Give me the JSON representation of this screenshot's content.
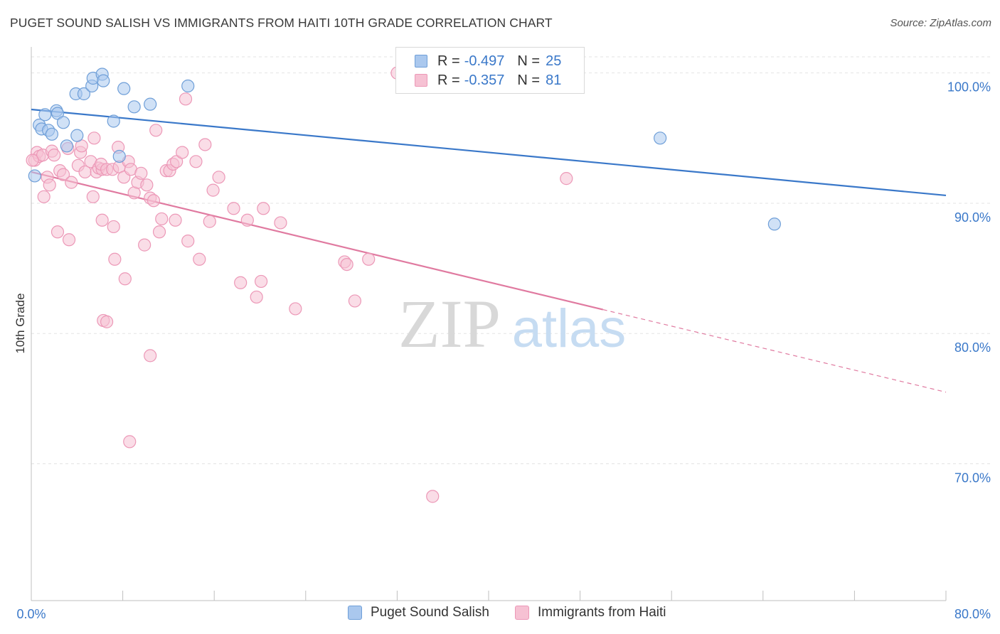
{
  "title": "PUGET SOUND SALISH VS IMMIGRANTS FROM HAITI 10TH GRADE CORRELATION CHART",
  "source": "Source: ZipAtlas.com",
  "watermark": {
    "zip": "ZIP",
    "atlas": "atlas"
  },
  "colors": {
    "blue": "#3a78c9",
    "blue_fill": "#aac8ee",
    "blue_stroke": "#6f9fd8",
    "pink": "#e07aa0",
    "pink_fill": "#f6c1d3",
    "pink_stroke": "#ec98b7",
    "grid": "#e3e3e3",
    "axis_text": "#3a78c9"
  },
  "legend_top": {
    "rows": [
      {
        "r_label": "R =",
        "r_value": "-0.497",
        "n_label": "N =",
        "n_value": "25"
      },
      {
        "r_label": "R =",
        "r_value": "-0.357",
        "n_label": "N =",
        "n_value": "81"
      }
    ]
  },
  "legend_bottom": {
    "items": [
      {
        "label": "Puget Sound Salish"
      },
      {
        "label": "Immigrants from Haiti"
      }
    ]
  },
  "chart_data": {
    "type": "scatter",
    "xlabel": "",
    "ylabel": "10th Grade",
    "xlim": [
      0,
      80
    ],
    "ylim": [
      59.5,
      102
    ],
    "x_tick_labels": [
      "0.0%",
      "80.0%"
    ],
    "y_ticks": [
      70,
      80,
      90,
      100
    ],
    "y_tick_labels": [
      "70.0%",
      "80.0%",
      "90.0%",
      "100.0%"
    ],
    "grid": true,
    "series": [
      {
        "name": "Puget Sound Salish",
        "points": [
          [
            0.3,
            92.1
          ],
          [
            0.7,
            96.0
          ],
          [
            0.9,
            95.7
          ],
          [
            1.2,
            96.8
          ],
          [
            1.5,
            95.6
          ],
          [
            1.8,
            95.3
          ],
          [
            2.2,
            97.1
          ],
          [
            2.3,
            96.9
          ],
          [
            2.8,
            96.2
          ],
          [
            3.1,
            94.4
          ],
          [
            4.0,
            95.2
          ],
          [
            3.9,
            98.4
          ],
          [
            4.6,
            98.4
          ],
          [
            5.3,
            99.0
          ],
          [
            5.4,
            99.6
          ],
          [
            6.2,
            99.9
          ],
          [
            6.3,
            99.4
          ],
          [
            7.2,
            96.3
          ],
          [
            7.7,
            93.6
          ],
          [
            8.1,
            98.8
          ],
          [
            9.0,
            97.4
          ],
          [
            10.4,
            97.6
          ],
          [
            13.7,
            99.0
          ],
          [
            55.0,
            95.0
          ],
          [
            65.0,
            88.4
          ]
        ],
        "trend": {
          "x": [
            0,
            80
          ],
          "y": [
            97.2,
            90.6
          ]
        }
      },
      {
        "name": "Immigrants from Haiti",
        "points": [
          [
            0.3,
            93.3
          ],
          [
            0.5,
            93.9
          ],
          [
            0.7,
            93.6
          ],
          [
            1.0,
            93.7
          ],
          [
            1.1,
            90.5
          ],
          [
            1.4,
            92.0
          ],
          [
            1.6,
            91.4
          ],
          [
            1.8,
            94.0
          ],
          [
            2.0,
            93.7
          ],
          [
            2.3,
            87.8
          ],
          [
            2.5,
            92.5
          ],
          [
            2.8,
            92.2
          ],
          [
            3.2,
            94.2
          ],
          [
            3.3,
            87.2
          ],
          [
            3.5,
            91.6
          ],
          [
            4.1,
            92.9
          ],
          [
            4.3,
            93.9
          ],
          [
            4.4,
            94.4
          ],
          [
            4.7,
            92.4
          ],
          [
            5.2,
            93.2
          ],
          [
            5.4,
            90.5
          ],
          [
            5.5,
            95.0
          ],
          [
            5.7,
            92.4
          ],
          [
            5.9,
            92.7
          ],
          [
            6.2,
            92.6
          ],
          [
            6.1,
            93.0
          ],
          [
            6.6,
            92.6
          ],
          [
            6.2,
            88.7
          ],
          [
            6.3,
            81.0
          ],
          [
            6.6,
            80.9
          ],
          [
            7.1,
            92.6
          ],
          [
            7.2,
            88.2
          ],
          [
            7.3,
            85.7
          ],
          [
            7.6,
            94.3
          ],
          [
            7.7,
            92.8
          ],
          [
            8.2,
            84.2
          ],
          [
            8.1,
            92.0
          ],
          [
            8.5,
            93.2
          ],
          [
            8.7,
            92.6
          ],
          [
            9.0,
            90.8
          ],
          [
            9.3,
            91.6
          ],
          [
            9.6,
            92.3
          ],
          [
            9.9,
            86.8
          ],
          [
            10.1,
            91.4
          ],
          [
            10.4,
            90.4
          ],
          [
            10.7,
            90.2
          ],
          [
            10.9,
            95.6
          ],
          [
            11.2,
            87.8
          ],
          [
            11.4,
            88.8
          ],
          [
            11.8,
            92.5
          ],
          [
            12.1,
            92.5
          ],
          [
            12.4,
            93.0
          ],
          [
            12.6,
            88.7
          ],
          [
            12.7,
            93.2
          ],
          [
            13.2,
            93.9
          ],
          [
            13.5,
            98.0
          ],
          [
            13.7,
            87.1
          ],
          [
            14.4,
            93.2
          ],
          [
            14.7,
            85.7
          ],
          [
            15.2,
            94.5
          ],
          [
            15.6,
            88.6
          ],
          [
            15.9,
            91.0
          ],
          [
            16.4,
            92.0
          ],
          [
            17.7,
            89.6
          ],
          [
            18.3,
            83.9
          ],
          [
            18.9,
            88.7
          ],
          [
            19.7,
            82.8
          ],
          [
            20.1,
            84.0
          ],
          [
            20.3,
            89.6
          ],
          [
            21.8,
            88.5
          ],
          [
            23.1,
            81.9
          ],
          [
            27.4,
            85.5
          ],
          [
            27.6,
            85.3
          ],
          [
            28.3,
            82.5
          ],
          [
            29.5,
            85.7
          ],
          [
            32.0,
            100.0
          ],
          [
            46.8,
            91.9
          ],
          [
            8.6,
            71.7
          ],
          [
            10.4,
            78.3
          ],
          [
            35.1,
            67.5
          ],
          [
            0.1,
            93.3
          ]
        ],
        "trend": {
          "x": [
            0,
            80
          ],
          "y": [
            92.4,
            75.5
          ],
          "solid_until_x": 50
        }
      }
    ]
  }
}
